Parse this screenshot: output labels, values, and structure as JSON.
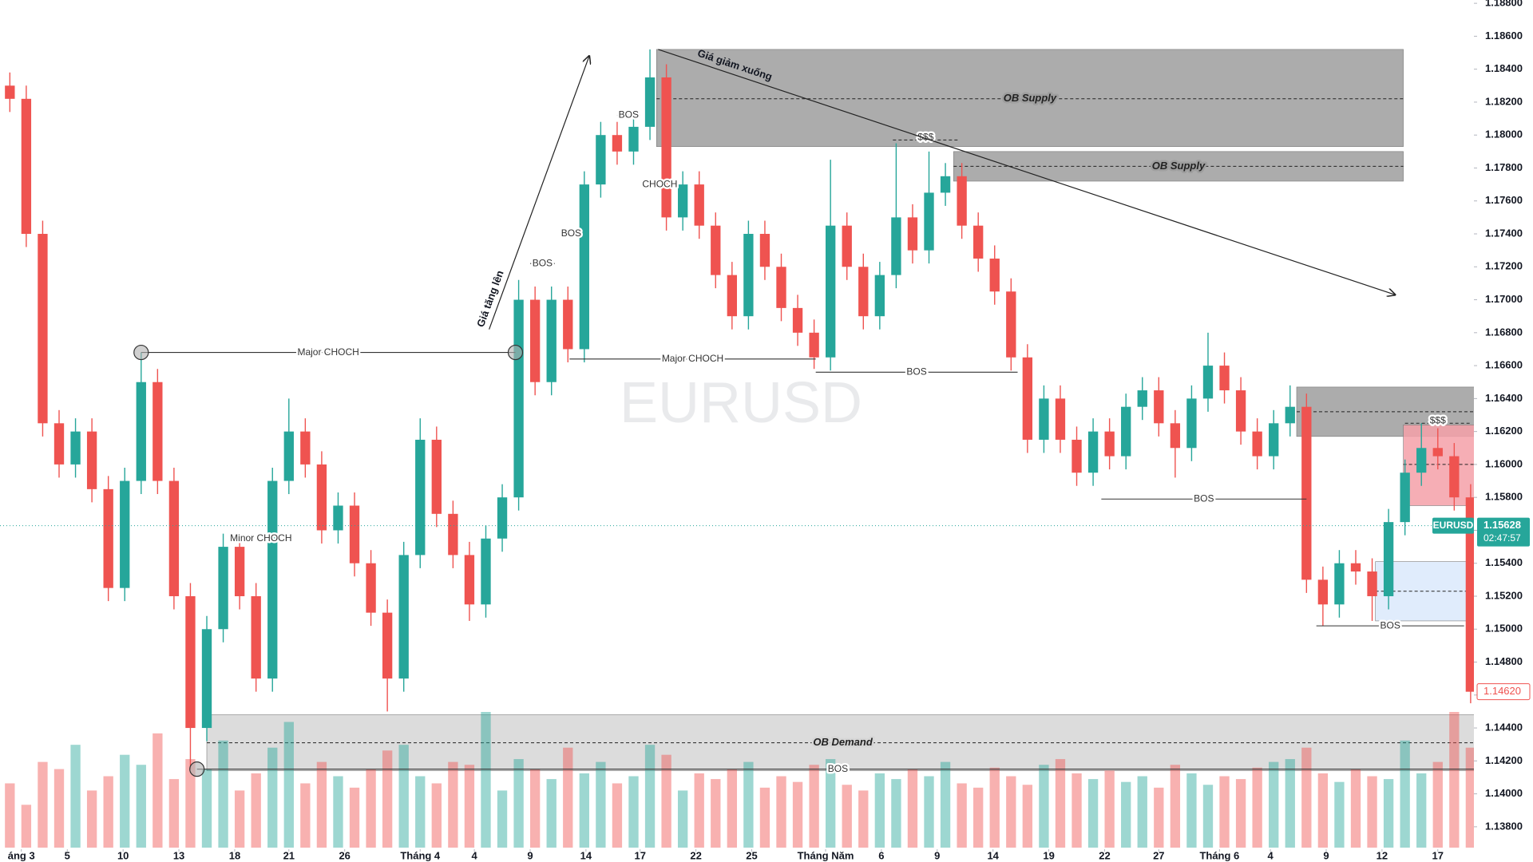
{
  "chart_data": {
    "type": "candlestick",
    "title": "EURUSD",
    "up_color": "#26a69a",
    "down_color": "#ef5350",
    "ylim": [
      1.1378,
      1.1882
    ],
    "xlim": [
      -0.6,
      89.2
    ],
    "yticks": [
      {
        "value": 1.138,
        "label": "1.13800"
      },
      {
        "value": 1.14,
        "label": "1.14000"
      },
      {
        "value": 1.142,
        "label": "1.14200"
      },
      {
        "value": 1.144,
        "label": "1.14400"
      },
      {
        "value": 1.146,
        "label": "1.14600"
      },
      {
        "value": 1.148,
        "label": "1.14800"
      },
      {
        "value": 1.15,
        "label": "1.15000"
      },
      {
        "value": 1.152,
        "label": "1.15200"
      },
      {
        "value": 1.154,
        "label": "1.15400"
      },
      {
        "value": 1.156,
        "label": "1.15600"
      },
      {
        "value": 1.158,
        "label": "1.15800"
      },
      {
        "value": 1.16,
        "label": "1.16000"
      },
      {
        "value": 1.162,
        "label": "1.16200"
      },
      {
        "value": 1.164,
        "label": "1.16400"
      },
      {
        "value": 1.166,
        "label": "1.16600"
      },
      {
        "value": 1.168,
        "label": "1.16800"
      },
      {
        "value": 1.17,
        "label": "1.17000"
      },
      {
        "value": 1.172,
        "label": "1.17200"
      },
      {
        "value": 1.174,
        "label": "1.17400"
      },
      {
        "value": 1.176,
        "label": "1.17600"
      },
      {
        "value": 1.178,
        "label": "1.17800"
      },
      {
        "value": 1.18,
        "label": "1.18000"
      },
      {
        "value": 1.182,
        "label": "1.18200"
      },
      {
        "value": 1.184,
        "label": "1.18400"
      },
      {
        "value": 1.186,
        "label": "1.18600"
      },
      {
        "value": 1.188,
        "label": "1.18800"
      }
    ],
    "xticks": [
      {
        "value": 0.7,
        "label": "áng 3"
      },
      {
        "value": 3.5,
        "label": "5"
      },
      {
        "value": 6.9,
        "label": "10"
      },
      {
        "value": 10.3,
        "label": "13"
      },
      {
        "value": 13.7,
        "label": "18"
      },
      {
        "value": 17.0,
        "label": "21"
      },
      {
        "value": 20.4,
        "label": "26"
      },
      {
        "value": 25.0,
        "label": "Tháng 4"
      },
      {
        "value": 28.3,
        "label": "4"
      },
      {
        "value": 31.7,
        "label": "9"
      },
      {
        "value": 35.1,
        "label": "14"
      },
      {
        "value": 38.4,
        "label": "17"
      },
      {
        "value": 41.8,
        "label": "22"
      },
      {
        "value": 45.2,
        "label": "25"
      },
      {
        "value": 49.7,
        "label": "Tháng Năm"
      },
      {
        "value": 53.1,
        "label": "6"
      },
      {
        "value": 56.5,
        "label": "9"
      },
      {
        "value": 59.9,
        "label": "14"
      },
      {
        "value": 63.3,
        "label": "19"
      },
      {
        "value": 66.7,
        "label": "22"
      },
      {
        "value": 70.0,
        "label": "27"
      },
      {
        "value": 73.7,
        "label": "Tháng 6"
      },
      {
        "value": 76.8,
        "label": "4"
      },
      {
        "value": 80.2,
        "label": "9"
      },
      {
        "value": 83.6,
        "label": "12"
      },
      {
        "value": 87.0,
        "label": "17"
      }
    ],
    "candles": [
      [
        1.183,
        1.1838,
        1.1814,
        1.1822
      ],
      [
        1.1822,
        1.183,
        1.1732,
        1.174
      ],
      [
        1.174,
        1.1748,
        1.1617,
        1.1625
      ],
      [
        1.1625,
        1.1633,
        1.1592,
        1.16
      ],
      [
        1.16,
        1.1628,
        1.1592,
        1.162
      ],
      [
        1.162,
        1.1628,
        1.1577,
        1.1585
      ],
      [
        1.1585,
        1.1593,
        1.1517,
        1.1525
      ],
      [
        1.1525,
        1.1598,
        1.1517,
        1.159
      ],
      [
        1.159,
        1.1668,
        1.1582,
        1.165
      ],
      [
        1.165,
        1.1658,
        1.1582,
        1.159
      ],
      [
        1.159,
        1.1598,
        1.1512,
        1.152
      ],
      [
        1.152,
        1.1528,
        1.1415,
        1.144
      ],
      [
        1.144,
        1.1508,
        1.1432,
        1.15
      ],
      [
        1.15,
        1.1558,
        1.1492,
        1.155
      ],
      [
        1.155,
        1.1558,
        1.1512,
        1.152
      ],
      [
        1.152,
        1.1528,
        1.1462,
        1.147
      ],
      [
        1.147,
        1.1598,
        1.1462,
        1.159
      ],
      [
        1.159,
        1.164,
        1.1582,
        1.162
      ],
      [
        1.162,
        1.1628,
        1.1592,
        1.16
      ],
      [
        1.16,
        1.1608,
        1.1552,
        1.156
      ],
      [
        1.156,
        1.1583,
        1.1552,
        1.1575
      ],
      [
        1.1575,
        1.1583,
        1.1532,
        1.154
      ],
      [
        1.154,
        1.1548,
        1.1502,
        1.151
      ],
      [
        1.151,
        1.1518,
        1.145,
        1.147
      ],
      [
        1.147,
        1.1553,
        1.1462,
        1.1545
      ],
      [
        1.1545,
        1.1628,
        1.1537,
        1.1615
      ],
      [
        1.1615,
        1.1623,
        1.1562,
        1.157
      ],
      [
        1.157,
        1.1578,
        1.1537,
        1.1545
      ],
      [
        1.1545,
        1.1553,
        1.1505,
        1.1515
      ],
      [
        1.1515,
        1.1563,
        1.1507,
        1.1555
      ],
      [
        1.1555,
        1.1588,
        1.1547,
        1.158
      ],
      [
        1.158,
        1.1712,
        1.1572,
        1.17
      ],
      [
        1.17,
        1.1708,
        1.1642,
        1.165
      ],
      [
        1.165,
        1.1708,
        1.1642,
        1.17
      ],
      [
        1.17,
        1.1708,
        1.1662,
        1.167
      ],
      [
        1.167,
        1.1778,
        1.1662,
        1.177
      ],
      [
        1.177,
        1.1808,
        1.1762,
        1.18
      ],
      [
        1.18,
        1.1808,
        1.1782,
        1.179
      ],
      [
        1.179,
        1.1815,
        1.1782,
        1.1805
      ],
      [
        1.1805,
        1.1852,
        1.1797,
        1.1835
      ],
      [
        1.1835,
        1.1843,
        1.1742,
        1.175
      ],
      [
        1.175,
        1.1778,
        1.1742,
        1.177
      ],
      [
        1.177,
        1.1778,
        1.1737,
        1.1745
      ],
      [
        1.1745,
        1.1753,
        1.1707,
        1.1715
      ],
      [
        1.1715,
        1.1723,
        1.1682,
        1.169
      ],
      [
        1.169,
        1.1748,
        1.1682,
        1.174
      ],
      [
        1.174,
        1.1748,
        1.1712,
        1.172
      ],
      [
        1.172,
        1.1728,
        1.1687,
        1.1695
      ],
      [
        1.1695,
        1.1703,
        1.1672,
        1.168
      ],
      [
        1.168,
        1.1688,
        1.1658,
        1.1665
      ],
      [
        1.1665,
        1.1785,
        1.1657,
        1.1745
      ],
      [
        1.1745,
        1.1753,
        1.1712,
        1.172
      ],
      [
        1.172,
        1.1728,
        1.1682,
        1.169
      ],
      [
        1.169,
        1.1723,
        1.1682,
        1.1715
      ],
      [
        1.1715,
        1.1795,
        1.1707,
        1.175
      ],
      [
        1.175,
        1.1758,
        1.1722,
        1.173
      ],
      [
        1.173,
        1.179,
        1.1722,
        1.1765
      ],
      [
        1.1765,
        1.1783,
        1.1757,
        1.1775
      ],
      [
        1.1775,
        1.1783,
        1.1737,
        1.1745
      ],
      [
        1.1745,
        1.1753,
        1.1717,
        1.1725
      ],
      [
        1.1725,
        1.1733,
        1.1697,
        1.1705
      ],
      [
        1.1705,
        1.1713,
        1.1657,
        1.1665
      ],
      [
        1.1665,
        1.1673,
        1.1607,
        1.1615
      ],
      [
        1.1615,
        1.1648,
        1.1607,
        1.164
      ],
      [
        1.164,
        1.1648,
        1.1607,
        1.1615
      ],
      [
        1.1615,
        1.1623,
        1.1587,
        1.1595
      ],
      [
        1.1595,
        1.1628,
        1.1587,
        1.162
      ],
      [
        1.162,
        1.1628,
        1.1597,
        1.1605
      ],
      [
        1.1605,
        1.1643,
        1.1597,
        1.1635
      ],
      [
        1.1635,
        1.1653,
        1.1627,
        1.1645
      ],
      [
        1.1645,
        1.1653,
        1.1617,
        1.1625
      ],
      [
        1.1625,
        1.1633,
        1.1592,
        1.161
      ],
      [
        1.161,
        1.1648,
        1.1602,
        1.164
      ],
      [
        1.164,
        1.168,
        1.1632,
        1.166
      ],
      [
        1.166,
        1.1668,
        1.1637,
        1.1645
      ],
      [
        1.1645,
        1.1653,
        1.1612,
        1.162
      ],
      [
        1.162,
        1.1628,
        1.1597,
        1.1605
      ],
      [
        1.1605,
        1.1633,
        1.1597,
        1.1625
      ],
      [
        1.1625,
        1.1648,
        1.1617,
        1.1635
      ],
      [
        1.1635,
        1.1643,
        1.1522,
        1.153
      ],
      [
        1.153,
        1.1538,
        1.1502,
        1.1515
      ],
      [
        1.1515,
        1.1548,
        1.1507,
        1.154
      ],
      [
        1.154,
        1.1548,
        1.1527,
        1.1535
      ],
      [
        1.1535,
        1.1543,
        1.1505,
        1.152
      ],
      [
        1.152,
        1.1573,
        1.1512,
        1.1565
      ],
      [
        1.1565,
        1.1603,
        1.1557,
        1.1595
      ],
      [
        1.1595,
        1.1625,
        1.1587,
        1.161
      ],
      [
        1.161,
        1.1622,
        1.1597,
        1.1605
      ],
      [
        1.1605,
        1.1613,
        1.1572,
        1.158
      ],
      [
        1.158,
        1.1588,
        1.1455,
        1.1462
      ]
    ],
    "volumes": [
      45,
      30,
      60,
      55,
      72,
      40,
      50,
      65,
      58,
      80,
      48,
      62,
      55,
      75,
      40,
      52,
      70,
      88,
      45,
      60,
      50,
      42,
      55,
      68,
      72,
      50,
      45,
      60,
      58,
      95,
      40,
      62,
      55,
      48,
      70,
      52,
      60,
      45,
      50,
      72,
      65,
      40,
      52,
      48,
      55,
      60,
      42,
      50,
      46,
      58,
      62,
      44,
      40,
      52,
      48,
      55,
      50,
      60,
      45,
      42,
      56,
      50,
      44,
      58,
      62,
      52,
      48,
      54,
      46,
      50,
      42,
      58,
      52,
      44,
      50,
      48,
      56,
      60,
      62,
      70,
      52,
      46,
      55,
      50,
      48,
      75,
      52,
      60,
      95,
      70
    ],
    "zones": [
      {
        "label": "OB Supply",
        "x": [
          39.4,
          84.9
        ],
        "y": [
          1.1793,
          1.1852
        ],
        "mid": 1.1822,
        "color": "#9e9e9e"
      },
      {
        "label": "OB Supply",
        "x": [
          57.5,
          84.9
        ],
        "y": [
          1.1772,
          1.179
        ],
        "mid": 1.1781,
        "color": "#9e9e9e"
      },
      {
        "label": "OB Demand",
        "x": [
          12,
          89.5
        ],
        "y": [
          1.1414,
          1.1448
        ],
        "mid": 1.1431,
        "color": "#d6d6d6"
      },
      {
        "x": [
          78.4,
          89.5
        ],
        "y": [
          1.1617,
          1.1647
        ],
        "mid": 1.1632,
        "color": "#9e9e9e"
      },
      {
        "x": [
          84.9,
          89.5
        ],
        "y": [
          1.1575,
          1.1624
        ],
        "mid": 1.16,
        "color": "#f4a0a8"
      },
      {
        "x": [
          83.2,
          89.5
        ],
        "y": [
          1.1505,
          1.1541
        ],
        "mid": 1.1523,
        "color": "#dbe9fb"
      }
    ],
    "levels": [
      {
        "label": "Major CHOCH",
        "x": [
          8,
          30.8
        ],
        "y": 1.1668
      },
      {
        "label": "Major CHOCH",
        "x": [
          34.1,
          49.1
        ],
        "y": 1.1664
      },
      {
        "label": "BOS",
        "x": [
          49.1,
          61.4
        ],
        "y": 1.1656
      },
      {
        "label": "BOS",
        "x": [
          66.5,
          79
        ],
        "y": 1.1579
      },
      {
        "label": "BOS",
        "x": [
          79.6,
          88.6
        ],
        "y": 1.1502
      },
      {
        "label": "BOS",
        "x": [
          37,
          38.4
        ],
        "y": 1.1812
      },
      {
        "label": "BOS",
        "x": [
          31.7,
          33.2
        ],
        "y": 1.1722
      },
      {
        "label": "BOS",
        "x": [
          33.6,
          34.8
        ],
        "y": 1.174
      },
      {
        "label": "BOS",
        "x": [
          11.4,
          89.5
        ],
        "y": 1.1415
      },
      {
        "label": "$$$",
        "x": [
          53.8,
          57.8
        ],
        "y": 1.1797,
        "dashed": true
      },
      {
        "label": "$$$",
        "x": [
          85,
          89
        ],
        "y": 1.1625,
        "dashed": true
      }
    ],
    "texts": [
      {
        "label": "CHOCH",
        "x": 39.6,
        "y": 1.177
      },
      {
        "label": "Minor CHOCH",
        "x": 15.3,
        "y": 1.1555
      }
    ],
    "arrows": [
      {
        "label": "Giá tăng lên",
        "x": [
          29.2,
          35.3
        ],
        "y": [
          1.1682,
          1.1848
        ]
      },
      {
        "label": "Giá giảm xuống",
        "x": [
          39.5,
          84.4
        ],
        "y": [
          1.1852,
          1.1703
        ]
      }
    ],
    "points": [
      {
        "x": 8,
        "y": 1.1668
      },
      {
        "x": 30.8,
        "y": 1.1668
      },
      {
        "x": 11.4,
        "y": 1.1415
      }
    ],
    "last_price": {
      "symbol": "EURUSD",
      "value": 1.15628,
      "label": "1.15628",
      "countdown": "02:47:57"
    },
    "marker_price": {
      "value": 1.1462,
      "label": "1.14620"
    }
  }
}
